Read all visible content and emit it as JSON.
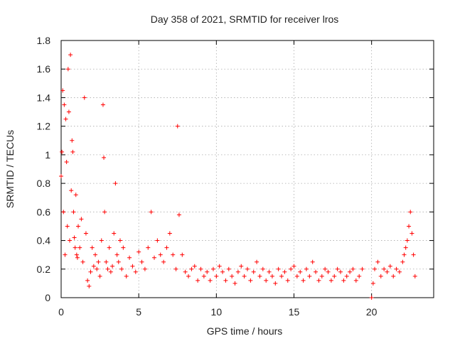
{
  "chart_data": {
    "type": "scatter",
    "title": "Day 358 of 2021, SRMTID for receiver lros",
    "xlabel": "GPS time / hours",
    "ylabel": "SRMTID / TECUs",
    "xlim": [
      0,
      24
    ],
    "ylim": [
      0,
      1.8
    ],
    "xticks": [
      0,
      5,
      10,
      15,
      20
    ],
    "xtick_labels": [
      "0",
      "5",
      "10",
      "15",
      "20"
    ],
    "yticks": [
      0,
      0.2,
      0.4,
      0.6,
      0.8,
      1.0,
      1.2,
      1.4,
      1.6,
      1.8
    ],
    "ytick_labels": [
      "0",
      "0.2",
      "0.4",
      "0.6",
      "0.8",
      "1",
      "1.2",
      "1.4",
      "1.6",
      "1.8"
    ],
    "grid": true,
    "marker": "+",
    "color": "#ff0000",
    "series": [
      {
        "name": "SRMTID",
        "x": [
          0.0,
          0.05,
          0.1,
          0.15,
          0.2,
          0.25,
          0.3,
          0.35,
          0.4,
          0.45,
          0.5,
          0.55,
          0.6,
          0.65,
          0.7,
          0.75,
          0.8,
          0.85,
          0.9,
          0.95,
          1.0,
          1.05,
          1.1,
          1.2,
          1.3,
          1.4,
          1.5,
          1.6,
          1.7,
          1.8,
          1.9,
          2.0,
          2.1,
          2.2,
          2.3,
          2.4,
          2.5,
          2.6,
          2.7,
          2.75,
          2.8,
          2.9,
          3.0,
          3.1,
          3.2,
          3.3,
          3.4,
          3.5,
          3.6,
          3.7,
          3.8,
          3.9,
          4.0,
          4.2,
          4.4,
          4.6,
          4.8,
          5.0,
          5.2,
          5.4,
          5.6,
          5.8,
          6.0,
          6.2,
          6.4,
          6.6,
          6.8,
          7.0,
          7.2,
          7.4,
          7.5,
          7.6,
          7.8,
          8.0,
          8.2,
          8.4,
          8.6,
          8.8,
          9.0,
          9.2,
          9.4,
          9.6,
          9.8,
          10.0,
          10.2,
          10.4,
          10.6,
          10.8,
          11.0,
          11.2,
          11.4,
          11.6,
          11.8,
          12.0,
          12.2,
          12.4,
          12.6,
          12.8,
          13.0,
          13.2,
          13.4,
          13.6,
          13.8,
          14.0,
          14.2,
          14.4,
          14.6,
          14.8,
          15.0,
          15.2,
          15.4,
          15.6,
          15.8,
          16.0,
          16.2,
          16.4,
          16.6,
          16.8,
          17.0,
          17.2,
          17.4,
          17.6,
          17.8,
          18.0,
          18.2,
          18.4,
          18.6,
          18.8,
          19.0,
          19.2,
          19.4,
          20.0,
          20.1,
          20.2,
          20.4,
          20.6,
          20.8,
          21.0,
          21.2,
          21.4,
          21.6,
          21.8,
          22.0,
          22.1,
          22.2,
          22.3,
          22.4,
          22.5,
          22.6,
          22.7,
          22.8
        ],
        "y": [
          0.85,
          1.02,
          1.45,
          0.6,
          1.35,
          0.3,
          1.25,
          0.95,
          0.5,
          1.6,
          1.3,
          0.4,
          1.7,
          0.75,
          1.1,
          1.02,
          0.6,
          0.42,
          0.35,
          0.72,
          0.3,
          0.28,
          0.5,
          0.35,
          0.55,
          0.25,
          1.4,
          0.45,
          0.12,
          0.08,
          0.18,
          0.35,
          0.22,
          0.3,
          0.2,
          0.25,
          0.15,
          0.4,
          1.35,
          0.98,
          0.6,
          0.25,
          0.2,
          0.35,
          0.18,
          0.22,
          0.45,
          0.8,
          0.3,
          0.25,
          0.4,
          0.2,
          0.35,
          0.15,
          0.28,
          0.22,
          0.18,
          0.32,
          0.25,
          0.2,
          0.35,
          0.6,
          0.28,
          0.4,
          0.3,
          0.25,
          0.35,
          0.45,
          0.3,
          0.2,
          1.2,
          0.58,
          0.3,
          0.18,
          0.15,
          0.2,
          0.22,
          0.12,
          0.2,
          0.15,
          0.18,
          0.12,
          0.2,
          0.15,
          0.22,
          0.18,
          0.12,
          0.2,
          0.15,
          0.1,
          0.18,
          0.22,
          0.15,
          0.2,
          0.12,
          0.18,
          0.25,
          0.15,
          0.2,
          0.12,
          0.18,
          0.15,
          0.1,
          0.2,
          0.15,
          0.18,
          0.12,
          0.2,
          0.22,
          0.15,
          0.18,
          0.12,
          0.2,
          0.15,
          0.25,
          0.18,
          0.12,
          0.15,
          0.2,
          0.18,
          0.12,
          0.15,
          0.2,
          0.18,
          0.12,
          0.15,
          0.18,
          0.2,
          0.12,
          0.15,
          0.2,
          0.0,
          0.1,
          0.2,
          0.25,
          0.15,
          0.2,
          0.18,
          0.22,
          0.15,
          0.2,
          0.18,
          0.25,
          0.3,
          0.35,
          0.4,
          0.5,
          0.6,
          0.45,
          0.3,
          0.15
        ]
      }
    ]
  }
}
